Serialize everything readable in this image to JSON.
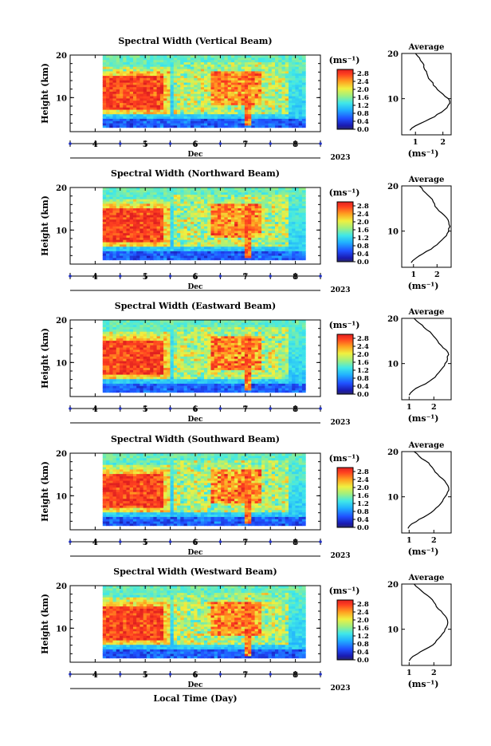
{
  "figure": {
    "xlabel": "Local Time (Day)",
    "month": "Dec",
    "year": "2023",
    "colorbar_unit": "(ms⁻¹)",
    "average_title": "Average",
    "average_xlabel": "(ms⁻¹)",
    "ylabel": "Height (km)"
  },
  "chart_data": [
    {
      "type": "heatmap",
      "title": "Spectral Width (Vertical Beam)",
      "ylabel": "Height (km)",
      "xlabel": "Dec",
      "x_ticks": [
        "4",
        "5",
        "6",
        "7",
        "8"
      ],
      "y_ticks": [
        10,
        20
      ],
      "ylim": [
        2,
        20
      ],
      "colorbar": {
        "ticks": [
          "0.0",
          "0.4",
          "0.8",
          "1.2",
          "1.6",
          "2.0",
          "2.4",
          "2.8"
        ],
        "range": [
          0,
          3.0
        ],
        "colormap": "jet"
      },
      "profile": {
        "title": "Average",
        "x_ticks": [
          "1",
          "2"
        ],
        "xlim": [
          0.5,
          2.3
        ],
        "heights": [
          3,
          4,
          5,
          6,
          7,
          8,
          9,
          10,
          11,
          12,
          13,
          14,
          15,
          16,
          17,
          18,
          19,
          20
        ],
        "values": [
          0.8,
          1.0,
          1.35,
          1.7,
          1.95,
          2.15,
          2.25,
          2.2,
          2.0,
          1.8,
          1.65,
          1.55,
          1.45,
          1.4,
          1.3,
          1.25,
          1.15,
          1.0
        ]
      }
    },
    {
      "type": "heatmap",
      "title": "Spectral Width (Northward Beam)",
      "ylabel": "Height (km)",
      "xlabel": "Dec",
      "x_ticks": [
        "4",
        "5",
        "6",
        "7",
        "8"
      ],
      "y_ticks": [
        10,
        20
      ],
      "ylim": [
        2,
        20
      ],
      "colorbar": {
        "ticks": [
          "0.0",
          "0.4",
          "0.8",
          "1.2",
          "1.6",
          "2.0",
          "2.4",
          "2.8"
        ],
        "range": [
          0,
          3.0
        ],
        "colormap": "jet"
      },
      "profile": {
        "title": "Average",
        "x_ticks": [
          "1",
          "2"
        ],
        "xlim": [
          0.5,
          2.6
        ],
        "heights": [
          3,
          4,
          5,
          6,
          7,
          8,
          9,
          10,
          11,
          12,
          13,
          14,
          15,
          16,
          17,
          18,
          19,
          20
        ],
        "values": [
          0.9,
          1.1,
          1.4,
          1.75,
          2.0,
          2.2,
          2.4,
          2.5,
          2.55,
          2.5,
          2.4,
          2.2,
          2.0,
          1.9,
          1.8,
          1.6,
          1.4,
          1.25
        ]
      }
    },
    {
      "type": "heatmap",
      "title": "Spectral Width (Eastward Beam)",
      "ylabel": "Height (km)",
      "xlabel": "Dec",
      "x_ticks": [
        "4",
        "5",
        "6",
        "7",
        "8"
      ],
      "y_ticks": [
        10,
        20
      ],
      "ylim": [
        2,
        20
      ],
      "colorbar": {
        "ticks": [
          "0.0",
          "0.4",
          "0.8",
          "1.2",
          "1.6",
          "2.0",
          "2.4",
          "2.8"
        ],
        "range": [
          0,
          3.0
        ],
        "colormap": "jet"
      },
      "profile": {
        "title": "Average",
        "x_ticks": [
          "1",
          "2"
        ],
        "xlim": [
          0.7,
          2.7
        ],
        "heights": [
          3,
          4,
          5,
          6,
          7,
          8,
          9,
          10,
          11,
          12,
          13,
          14,
          15,
          16,
          17,
          18,
          19,
          20
        ],
        "values": [
          1.0,
          1.15,
          1.45,
          1.8,
          2.05,
          2.2,
          2.35,
          2.45,
          2.55,
          2.6,
          2.5,
          2.3,
          2.15,
          2.0,
          1.85,
          1.6,
          1.4,
          1.2
        ]
      }
    },
    {
      "type": "heatmap",
      "title": "Spectral Width (Southward Beam)",
      "ylabel": "Height (km)",
      "xlabel": "Dec",
      "x_ticks": [
        "4",
        "5",
        "6",
        "7",
        "8"
      ],
      "y_ticks": [
        10,
        20
      ],
      "ylim": [
        2,
        20
      ],
      "colorbar": {
        "ticks": [
          "0.0",
          "0.4",
          "0.8",
          "1.2",
          "1.6",
          "2.0",
          "2.4",
          "2.8"
        ],
        "range": [
          0,
          3.0
        ],
        "colormap": "jet"
      },
      "profile": {
        "title": "Average",
        "x_ticks": [
          "1",
          "2"
        ],
        "xlim": [
          0.7,
          2.7
        ],
        "heights": [
          3,
          4,
          5,
          6,
          7,
          8,
          9,
          10,
          11,
          12,
          13,
          14,
          15,
          16,
          17,
          18,
          19,
          20
        ],
        "values": [
          0.95,
          1.1,
          1.4,
          1.75,
          2.0,
          2.2,
          2.35,
          2.45,
          2.55,
          2.6,
          2.5,
          2.35,
          2.15,
          2.0,
          1.85,
          1.65,
          1.4,
          1.2
        ]
      }
    },
    {
      "type": "heatmap",
      "title": "Spectral Width (Westward Beam)",
      "ylabel": "Height (km)",
      "xlabel": "Dec",
      "x_ticks": [
        "4",
        "5",
        "6",
        "7",
        "8"
      ],
      "y_ticks": [
        10,
        20
      ],
      "ylim": [
        2,
        20
      ],
      "colorbar": {
        "ticks": [
          "0.0",
          "0.4",
          "0.8",
          "1.2",
          "1.6",
          "2.0",
          "2.4",
          "2.8"
        ],
        "range": [
          0,
          3.0
        ],
        "colormap": "jet"
      },
      "profile": {
        "title": "Average",
        "x_ticks": [
          "1",
          "2"
        ],
        "xlim": [
          0.7,
          2.7
        ],
        "heights": [
          3,
          4,
          5,
          6,
          7,
          8,
          9,
          10,
          11,
          12,
          13,
          14,
          15,
          16,
          17,
          18,
          19,
          20
        ],
        "values": [
          1.0,
          1.15,
          1.45,
          1.8,
          2.05,
          2.2,
          2.35,
          2.45,
          2.55,
          2.55,
          2.45,
          2.3,
          2.1,
          2.0,
          1.85,
          1.6,
          1.4,
          1.2
        ]
      }
    }
  ]
}
